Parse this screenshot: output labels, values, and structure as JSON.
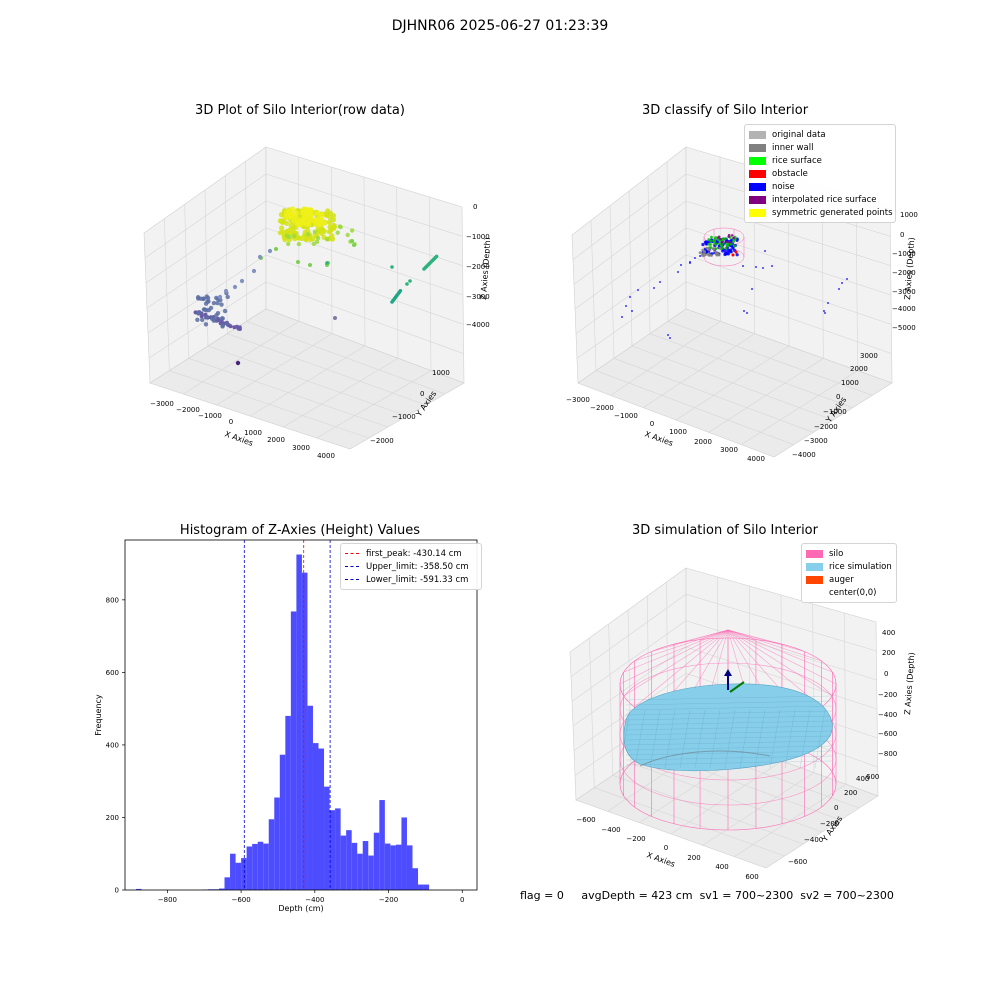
{
  "title": "DJHNR06 2025-06-27 01:23:39",
  "footer": {
    "flag": "flag = 0",
    "avg_depth": "avgDepth = 423 cm",
    "sv1": "sv1 = 700~2300",
    "sv2": "sv2 = 700~2300"
  },
  "colors": {
    "original_data": "#b3b3b3",
    "inner_wall": "#808080",
    "rice_surface": "#00ff00",
    "obstacle": "#ff0000",
    "noise": "#0000ff",
    "interpolated": "#800080",
    "symmetric": "#ffff00",
    "silo": "#ff69b4",
    "rice_sim": "#87ceeb",
    "auger": "#ff4500",
    "hist_bar": "#4d4dff"
  },
  "chart_data": [
    {
      "type": "scatter",
      "subtype": "3d",
      "title": "3D Plot of Silo Interior(row data)",
      "xlabel": "X Axies",
      "ylabel": "Y Axies",
      "zlabel": "Z Axies (Depth)",
      "xticks": [
        "−3000",
        "−2000",
        "−1000",
        "0",
        "1000",
        "2000",
        "3000",
        "4000"
      ],
      "yticks": [
        "−2000",
        "−1000",
        "0",
        "1000"
      ],
      "zticks": [
        "0",
        "−1000",
        "−2000",
        "−3000",
        "−4000"
      ],
      "colormap": "viridis (by depth)"
    },
    {
      "type": "scatter",
      "subtype": "3d",
      "title": "3D classify of Silo Interior",
      "xlabel": "X Axies",
      "ylabel": "Y Axies",
      "zlabel": "Z Axies (Depth)",
      "xticks": [
        "−3000",
        "−2000",
        "−1000",
        "0",
        "1000",
        "2000",
        "3000",
        "4000"
      ],
      "yticks": [
        "−4000",
        "−3000",
        "−2000",
        "−1000",
        "0",
        "1000",
        "2000",
        "3000"
      ],
      "zticks": [
        "1000",
        "0",
        "−1000",
        "−2000",
        "−3000",
        "−4000",
        "−5000"
      ],
      "legend": [
        "original data",
        "inner wall",
        "rice surface",
        "obstacle",
        "noise",
        "interpolated rice surface",
        "symmetric generated points"
      ],
      "legend_position": "top-right"
    },
    {
      "type": "bar",
      "subtype": "histogram",
      "title": "Histogram of Z-Axies (Height) Values",
      "xlabel": "Depth (cm)",
      "ylabel": "Frequency",
      "xlim": [
        -915,
        40
      ],
      "ylim": [
        0,
        965
      ],
      "xticks": [
        -800,
        -600,
        -400,
        -200,
        0
      ],
      "yticks": [
        0,
        200,
        400,
        600,
        800
      ],
      "bin_width": 15,
      "bins": [
        [
          -885,
          3
        ],
        [
          -705,
          1
        ],
        [
          -690,
          2
        ],
        [
          -675,
          2
        ],
        [
          -660,
          4
        ],
        [
          -645,
          35
        ],
        [
          -630,
          100
        ],
        [
          -615,
          75
        ],
        [
          -600,
          88
        ],
        [
          -585,
          120
        ],
        [
          -570,
          127
        ],
        [
          -555,
          133
        ],
        [
          -540,
          128
        ],
        [
          -525,
          195
        ],
        [
          -510,
          255
        ],
        [
          -495,
          373
        ],
        [
          -480,
          480
        ],
        [
          -465,
          768
        ],
        [
          -450,
          925
        ],
        [
          -435,
          875
        ],
        [
          -420,
          508
        ],
        [
          -405,
          405
        ],
        [
          -390,
          390
        ],
        [
          -375,
          285
        ],
        [
          -360,
          220
        ],
        [
          -345,
          225
        ],
        [
          -330,
          150
        ],
        [
          -315,
          165
        ],
        [
          -300,
          130
        ],
        [
          -285,
          100
        ],
        [
          -270,
          135
        ],
        [
          -255,
          95
        ],
        [
          -240,
          158
        ],
        [
          -225,
          248
        ],
        [
          -210,
          128
        ],
        [
          -195,
          123
        ],
        [
          -180,
          125
        ],
        [
          -165,
          200
        ],
        [
          -150,
          123
        ],
        [
          -135,
          60
        ],
        [
          -120,
          15
        ],
        [
          -105,
          15
        ]
      ],
      "vlines": [
        {
          "label": "first_peak: -430.14 cm",
          "value": -430.14,
          "color": "#ff0000"
        },
        {
          "label": "Upper_limit: -358.50 cm",
          "value": -358.5,
          "color": "#0000cc"
        },
        {
          "label": "Lower_limit: -591.33 cm",
          "value": -591.33,
          "color": "#0000cc"
        }
      ],
      "legend_position": "top-right"
    },
    {
      "type": "scatter",
      "subtype": "3d-surface",
      "title": "3D simulation of Silo Interior",
      "xlabel": "X Axies",
      "ylabel": "Y Axies",
      "zlabel": "Z Axies (Depth)",
      "xticks": [
        "−600",
        "−400",
        "−200",
        "0",
        "200",
        "400",
        "600"
      ],
      "yticks": [
        "−600",
        "−400",
        "−200",
        "0",
        "200",
        "400",
        "600"
      ],
      "zticks": [
        "400",
        "200",
        "0",
        "−200",
        "−400",
        "−600",
        "−800"
      ],
      "legend": [
        "silo",
        "rice simulation",
        "auger",
        "center(0,0)"
      ],
      "legend_position": "top-right"
    }
  ]
}
